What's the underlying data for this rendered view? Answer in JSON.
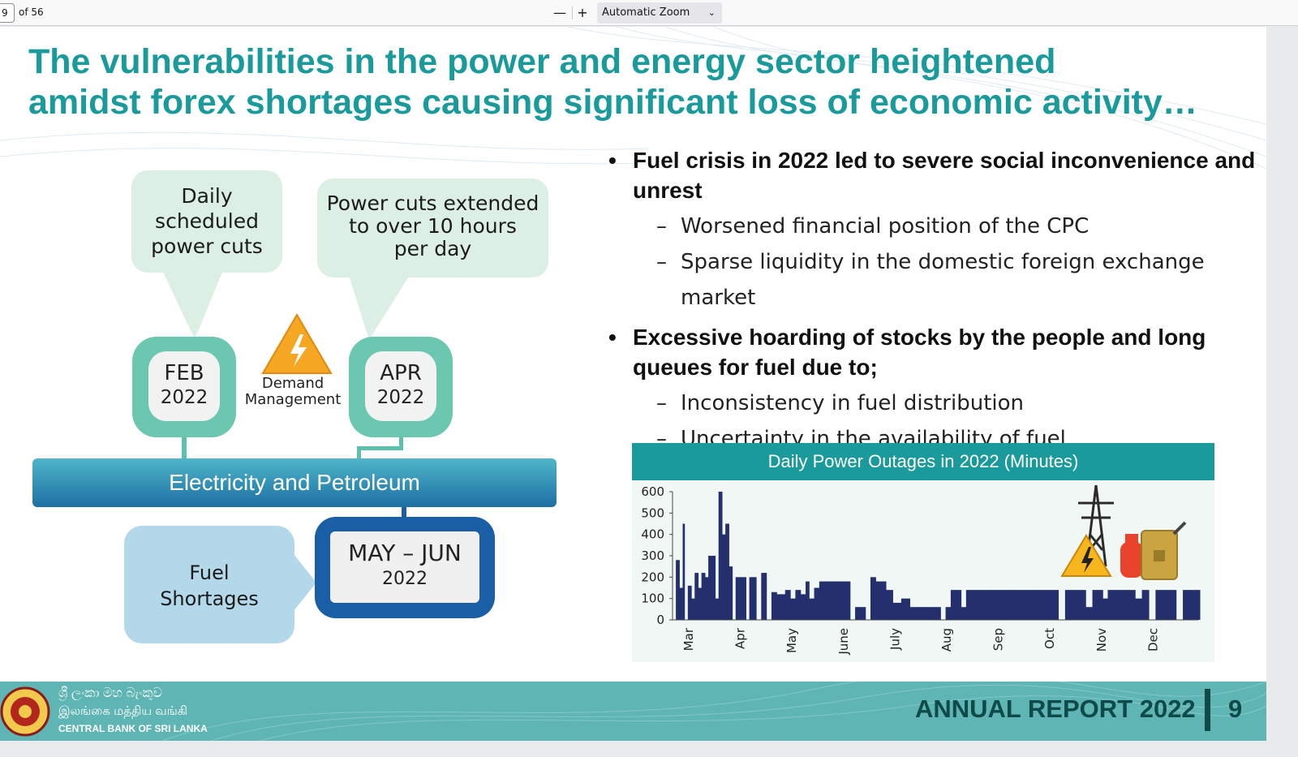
{
  "toolbar": {
    "page_number": "9",
    "page_count": "of 56",
    "zoom_out_label": "—",
    "zoom_in_label": "+",
    "zoom_value": "Automatic Zoom"
  },
  "slide": {
    "title_line1": "The vulnerabilities in the power and energy sector heightened",
    "title_line2": "amidst forex shortages causing significant loss of economic activity…",
    "bubble_feb_lines": [
      "Daily",
      "scheduled",
      "power cuts"
    ],
    "bubble_apr_lines": [
      "Power cuts extended",
      "to over 10 hours",
      "per day"
    ],
    "feb": {
      "month": "FEB",
      "year": "2022"
    },
    "apr": {
      "month": "APR",
      "year": "2022"
    },
    "demand_lines": [
      "Demand",
      "Management"
    ],
    "bar_label": "Electricity and Petroleum",
    "fuel_lines": [
      "Fuel",
      "Shortages"
    ],
    "mayjun": {
      "months": "MAY – JUN",
      "year": "2022"
    },
    "bullet1": {
      "lines": [
        "Fuel crisis in 2022 led to severe social inconvenience and",
        "unrest"
      ],
      "subs": [
        "Worsened financial position of the CPC",
        "Sparse liquidity in the domestic foreign exchange market"
      ]
    },
    "bullet2": {
      "lines": [
        "Excessive hoarding of stocks by the people and long",
        "queues for fuel due to;"
      ],
      "subs": [
        "Inconsistency in fuel distribution",
        "Uncertainty in the availability of fuel"
      ]
    },
    "bullet_symbol": "•",
    "dash_symbol": "–",
    "footer": {
      "bank_sinhala": "ශ්‍රී ලංකා මහ බැංකුව",
      "bank_tamil": "இலங்கை மத்திய வங்கி",
      "bank_english": "CENTRAL BANK OF SRI LANKA",
      "report": "ANNUAL REPORT 2022",
      "page": "9"
    },
    "icons": [
      "warning-lightning-icon",
      "transmission-tower-icon",
      "gas-cylinder-icon",
      "jerry-can-icon",
      "bank-seal-icon"
    ],
    "colors": {
      "accent": "#1a9a9a",
      "bar_series": "#24306e",
      "deep_blue": "#1a5ea5",
      "mint": "#6cc7b0",
      "footer": "#5fb5b3"
    }
  },
  "chart_data": {
    "type": "area",
    "title": "Daily Power Outages in 2022 (Minutes)",
    "ylim": [
      0,
      600
    ],
    "yticks": [
      "0",
      "100",
      "200",
      "300",
      "400",
      "500",
      "600"
    ],
    "xticks": [
      "Mar",
      "Apr",
      "May",
      "June",
      "July",
      "Aug",
      "Sep",
      "Oct",
      "Nov",
      "Dec"
    ],
    "x": [
      "2022-02-28",
      "2022-03-02",
      "2022-03-04",
      "2022-03-05",
      "2022-03-07",
      "2022-03-09",
      "2022-03-11",
      "2022-03-13",
      "2022-03-15",
      "2022-03-17",
      "2022-03-19",
      "2022-03-21",
      "2022-03-23",
      "2022-03-25",
      "2022-03-27",
      "2022-03-29",
      "2022-03-31",
      "2022-04-02",
      "2022-04-04",
      "2022-04-06",
      "2022-04-08",
      "2022-04-10",
      "2022-04-12",
      "2022-04-14",
      "2022-04-16",
      "2022-04-19",
      "2022-04-22",
      "2022-04-25",
      "2022-04-28",
      "2022-05-03",
      "2022-05-06",
      "2022-05-09",
      "2022-05-12",
      "2022-05-15",
      "2022-05-17",
      "2022-05-20",
      "2022-05-23",
      "2022-05-26",
      "2022-05-29",
      "2022-06-01",
      "2022-06-04",
      "2022-06-07",
      "2022-06-10",
      "2022-06-13",
      "2022-06-16",
      "2022-06-19",
      "2022-06-22",
      "2022-06-25",
      "2022-06-28",
      "2022-07-01",
      "2022-07-05",
      "2022-07-10",
      "2022-07-15",
      "2022-07-20",
      "2022-07-25",
      "2022-07-30",
      "2022-08-02",
      "2022-08-05",
      "2022-08-08",
      "2022-08-11",
      "2022-08-14",
      "2022-08-17",
      "2022-08-20",
      "2022-08-23",
      "2022-08-26",
      "2022-08-29",
      "2022-09-01",
      "2022-09-04",
      "2022-09-07",
      "2022-09-10",
      "2022-09-13",
      "2022-09-16",
      "2022-09-19",
      "2022-09-22",
      "2022-09-25",
      "2022-09-28",
      "2022-10-01",
      "2022-10-04",
      "2022-10-07",
      "2022-10-10",
      "2022-10-14",
      "2022-10-18",
      "2022-10-22",
      "2022-10-26",
      "2022-10-30",
      "2022-11-02",
      "2022-11-05",
      "2022-11-08",
      "2022-11-11",
      "2022-11-14",
      "2022-11-17",
      "2022-11-20",
      "2022-11-24",
      "2022-11-28",
      "2022-12-02",
      "2022-12-06",
      "2022-12-10",
      "2022-12-14",
      "2022-12-18",
      "2022-12-22",
      "2022-12-26",
      "2022-12-30"
    ],
    "values": [
      280,
      150,
      450,
      0,
      160,
      100,
      220,
      150,
      220,
      200,
      300,
      300,
      100,
      600,
      400,
      450,
      250,
      0,
      200,
      200,
      200,
      0,
      200,
      200,
      0,
      220,
      0,
      130,
      120,
      140,
      100,
      140,
      120,
      180,
      100,
      150,
      180,
      180,
      180,
      180,
      180,
      180,
      0,
      60,
      60,
      0,
      200,
      180,
      180,
      140,
      80,
      100,
      60,
      60,
      60,
      60,
      0,
      60,
      140,
      140,
      60,
      140,
      140,
      140,
      140,
      140,
      140,
      140,
      140,
      140,
      140,
      140,
      140,
      140,
      140,
      140,
      140,
      140,
      140,
      0,
      140,
      140,
      140,
      60,
      140,
      140,
      100,
      140,
      140,
      140,
      140,
      140,
      100,
      140,
      0,
      140,
      140,
      140,
      0,
      140,
      140,
      140
    ]
  }
}
